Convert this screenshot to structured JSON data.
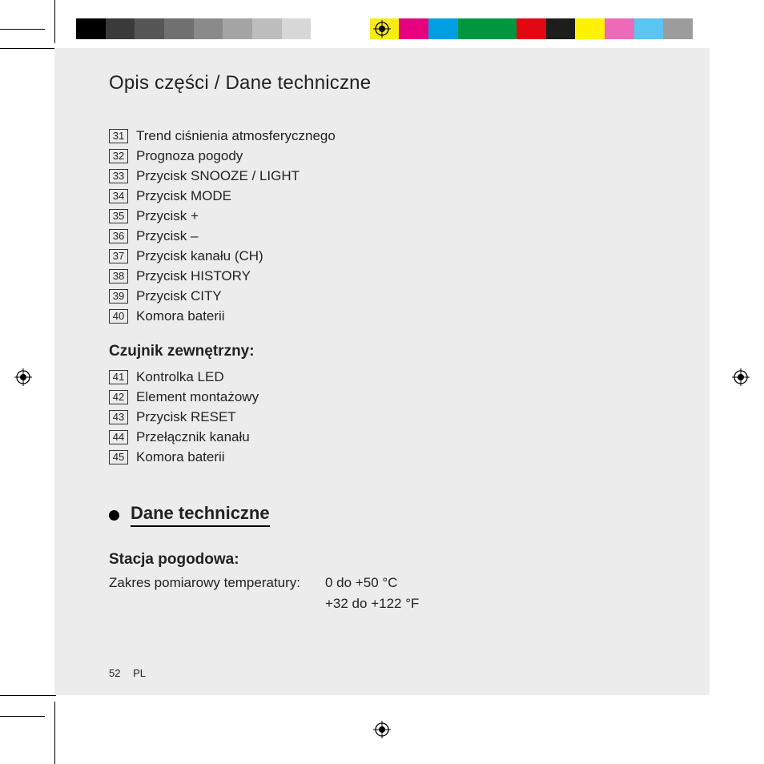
{
  "colorbar": {
    "colors": [
      "#000000",
      "#3a3a3a",
      "#565656",
      "#707070",
      "#8a8a8a",
      "#a4a4a4",
      "#bdbdbd",
      "#d7d7d7",
      "#ffffff",
      "#ffffff",
      "#f7ec13",
      "#e6007e",
      "#009fe3",
      "#009640",
      "#009640",
      "#e30613",
      "#1d1d1b",
      "#fff200",
      "#ec6ab7",
      "#5bc5f2",
      "#9c9c9c"
    ]
  },
  "page": {
    "background": "#ececec",
    "header": "Opis części / Dane techniczne",
    "list1": [
      {
        "num": "31",
        "text": "Trend ciśnienia atmosferycznego"
      },
      {
        "num": "32",
        "text": "Prognoza pogody"
      },
      {
        "num": "33",
        "text": "Przycisk SNOOZE / LIGHT"
      },
      {
        "num": "34",
        "text": "Przycisk MODE"
      },
      {
        "num": "35",
        "text": "Przycisk +"
      },
      {
        "num": "36",
        "text": "Przycisk –"
      },
      {
        "num": "37",
        "text": "Przycisk kanału (CH)"
      },
      {
        "num": "38",
        "text": "Przycisk HISTORY"
      },
      {
        "num": "39",
        "text": "Przycisk CITY"
      },
      {
        "num": "40",
        "text": "Komora baterii"
      }
    ],
    "subhead1": "Czujnik zewnętrzny:",
    "list2": [
      {
        "num": "41",
        "text": "Kontrolka LED"
      },
      {
        "num": "42",
        "text": "Element montażowy"
      },
      {
        "num": "43",
        "text": "Przycisk RESET"
      },
      {
        "num": "44",
        "text": "Przełącznik kanału"
      },
      {
        "num": "45",
        "text": "Komora baterii"
      }
    ],
    "bullet_heading": "Dane techniczne",
    "subhead2": "Stacja pogodowa:",
    "spec_label": "Zakres pomiarowy temperatury:",
    "spec_value_line1": "0 do +50 °C",
    "spec_value_line2": "+32 do +122 °F",
    "footer_page": "52",
    "footer_lang": "PL"
  }
}
